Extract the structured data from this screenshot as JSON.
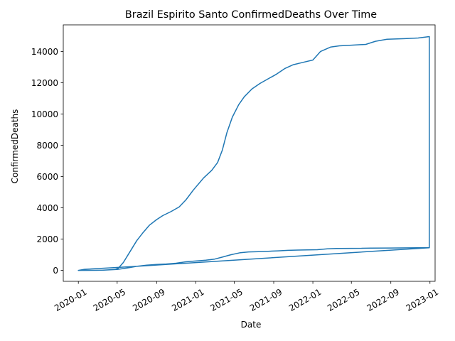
{
  "chart_data": {
    "type": "line",
    "title": "Brazil Espirito Santo ConfirmedDeaths Over Time",
    "xlabel": "Date",
    "ylabel": "ConfirmedDeaths",
    "xlim": [
      "2019-11-15",
      "2023-01-17"
    ],
    "ylim": [
      -700,
      15700
    ],
    "x_ticks": [
      "2020-01",
      "2020-05",
      "2020-09",
      "2021-01",
      "2021-05",
      "2021-09",
      "2022-01",
      "2022-05",
      "2022-09",
      "2023-01"
    ],
    "y_ticks": [
      0,
      2000,
      4000,
      6000,
      8000,
      10000,
      12000,
      14000
    ],
    "grid": false,
    "line_color": "#1f77b4",
    "series": [
      {
        "points": [
          [
            "2020-01-01",
            0
          ],
          [
            "2020-03-15",
            10
          ],
          [
            "2020-04-25",
            60
          ],
          [
            "2020-05-05",
            150
          ],
          [
            "2020-05-20",
            500
          ],
          [
            "2020-06-10",
            1200
          ],
          [
            "2020-07-01",
            1900
          ],
          [
            "2020-07-20",
            2400
          ],
          [
            "2020-08-10",
            2900
          ],
          [
            "2020-09-01",
            3250
          ],
          [
            "2020-09-20",
            3500
          ],
          [
            "2020-10-15",
            3750
          ],
          [
            "2020-11-10",
            4050
          ],
          [
            "2020-12-01",
            4500
          ],
          [
            "2020-12-25",
            5150
          ],
          [
            "2021-01-25",
            5900
          ],
          [
            "2021-02-20",
            6400
          ],
          [
            "2021-03-10",
            6900
          ],
          [
            "2021-03-25",
            7700
          ],
          [
            "2021-04-08",
            8800
          ],
          [
            "2021-04-25",
            9800
          ],
          [
            "2021-05-15",
            10600
          ],
          [
            "2021-06-01",
            11100
          ],
          [
            "2021-06-25",
            11600
          ],
          [
            "2021-07-20",
            11950
          ],
          [
            "2021-08-15",
            12250
          ],
          [
            "2021-09-10",
            12550
          ],
          [
            "2021-10-05",
            12900
          ],
          [
            "2021-11-01",
            13150
          ],
          [
            "2021-12-01",
            13300
          ],
          [
            "2022-01-01",
            13450
          ],
          [
            "2022-01-25",
            14000
          ],
          [
            "2022-02-25",
            14280
          ],
          [
            "2022-03-25",
            14360
          ],
          [
            "2022-05-01",
            14400
          ],
          [
            "2022-06-15",
            14450
          ],
          [
            "2022-07-15",
            14650
          ],
          [
            "2022-08-20",
            14780
          ],
          [
            "2022-10-15",
            14820
          ],
          [
            "2022-11-25",
            14860
          ],
          [
            "2022-12-30",
            14950
          ],
          [
            "2022-12-30",
            1450
          ],
          [
            "2021-01-01",
            500
          ],
          [
            "2020-07-01",
            260
          ],
          [
            "2020-04-01",
            150
          ],
          [
            "2020-01-20",
            70
          ],
          [
            "2020-01-01",
            0
          ],
          [
            "2020-03-20",
            15
          ],
          [
            "2020-05-01",
            60
          ],
          [
            "2020-06-01",
            150
          ],
          [
            "2020-07-01",
            260
          ],
          [
            "2020-08-01",
            330
          ],
          [
            "2020-09-01",
            380
          ],
          [
            "2020-10-01",
            410
          ],
          [
            "2020-11-01",
            460
          ],
          [
            "2020-12-01",
            550
          ],
          [
            "2021-01-01",
            600
          ],
          [
            "2021-02-01",
            650
          ],
          [
            "2021-03-01",
            720
          ],
          [
            "2021-03-25",
            850
          ],
          [
            "2021-04-20",
            1000
          ],
          [
            "2021-05-20",
            1130
          ],
          [
            "2021-06-15",
            1180
          ],
          [
            "2021-07-15",
            1200
          ],
          [
            "2021-08-15",
            1220
          ],
          [
            "2021-09-15",
            1250
          ],
          [
            "2021-10-15",
            1280
          ],
          [
            "2021-11-15",
            1300
          ],
          [
            "2021-12-15",
            1310
          ],
          [
            "2022-01-15",
            1320
          ],
          [
            "2022-02-15",
            1380
          ],
          [
            "2022-03-15",
            1400
          ],
          [
            "2022-05-01",
            1410
          ],
          [
            "2022-07-01",
            1420
          ],
          [
            "2022-09-01",
            1430
          ],
          [
            "2022-11-01",
            1440
          ],
          [
            "2022-12-30",
            1460
          ]
        ]
      }
    ]
  }
}
